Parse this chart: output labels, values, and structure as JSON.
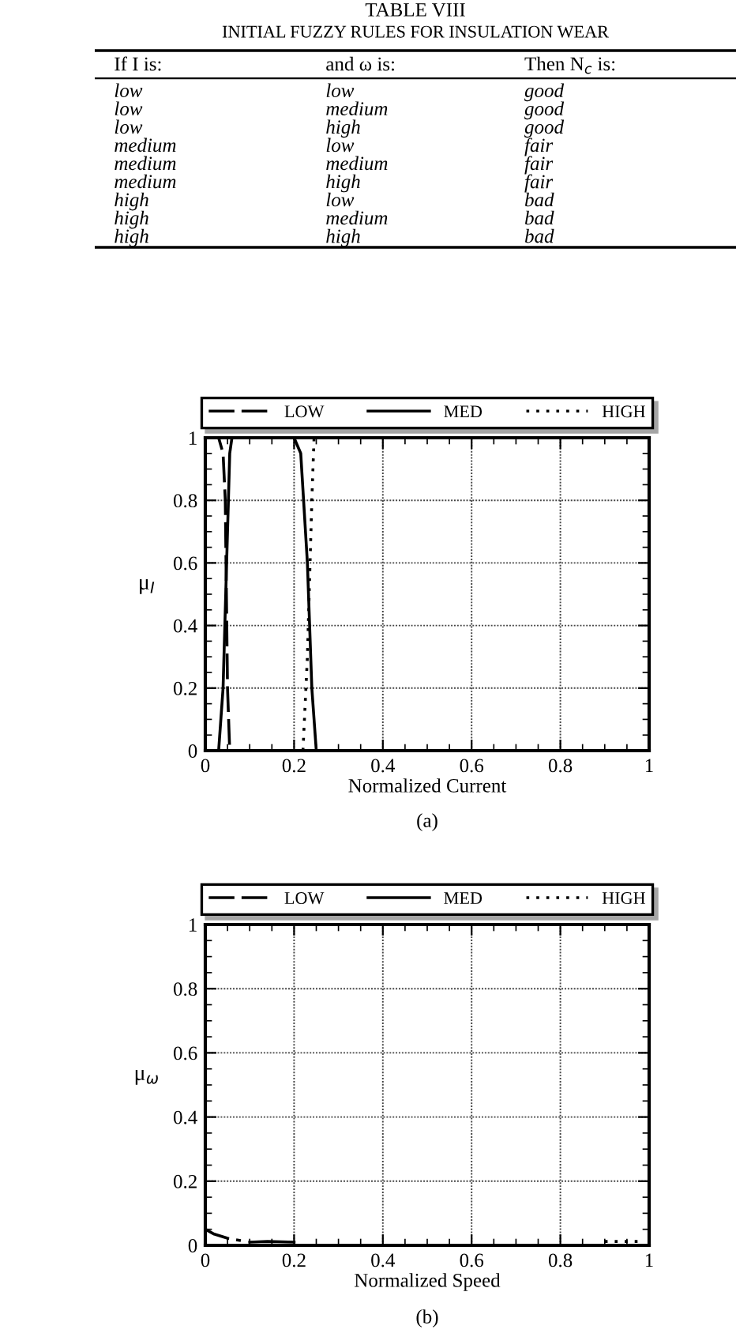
{
  "chart_data": [
    {
      "type": "other",
      "title": "TABLE VIII",
      "subtitle": "INITIAL FUZZY RULES FOR INSULATION WEAR",
      "annotations": [
        "If I is:",
        "and ω is:",
        "Then N$_{c}$ is:",
        "low",
        "low",
        "good",
        "low",
        "medium",
        "good",
        "low",
        "high",
        "good",
        "medium",
        "low",
        "fair",
        "medium",
        "medium",
        "fair",
        "medium",
        "high",
        "fair",
        "high",
        "low",
        "bad",
        "high",
        "medium",
        "bad",
        "high",
        "high",
        "bad"
      ]
    },
    {
      "type": "line",
      "xlabel": "Normalized Current",
      "ylabel": "μ$_{I}$",
      "annotations": [
        "(a)"
      ],
      "xlim": [
        0,
        1
      ],
      "ylim": [
        0,
        1
      ],
      "xticks": [
        0,
        0.2,
        0.4,
        0.6,
        0.8,
        1
      ],
      "yticks": [
        0,
        0.2,
        0.4,
        0.6,
        0.8,
        1
      ],
      "grid": true,
      "legend": "top",
      "series": [
        {
          "name": "LOW",
          "color": "#000000",
          "line_style": "dashed",
          "x": [
            0,
            0.03,
            0.04,
            0.045,
            0.05,
            0.055
          ],
          "values": [
            1,
            1,
            0.95,
            0.8,
            0.2,
            0
          ]
        },
        {
          "name": "MED",
          "color": "#000000",
          "line_style": "solid",
          "x": [
            0.03,
            0.04,
            0.05,
            0.055,
            0.06,
            0.2,
            0.215,
            0.23,
            0.24,
            0.25
          ],
          "values": [
            0,
            0.2,
            0.7,
            0.95,
            1,
            1,
            0.95,
            0.6,
            0.2,
            0
          ]
        },
        {
          "name": "HIGH",
          "color": "#000000",
          "line_style": "dotted",
          "x": [
            0.22,
            0.23,
            0.24,
            0.245,
            1
          ],
          "values": [
            0,
            0.3,
            0.8,
            1,
            1
          ]
        }
      ]
    },
    {
      "type": "line",
      "xlabel": "Normalized Speed",
      "ylabel": "μ$_{ω}$",
      "annotations": [
        "(b)"
      ],
      "xlim": [
        0,
        1
      ],
      "ylim": [
        0,
        1
      ],
      "xticks": [
        0,
        0.2,
        0.4,
        0.6,
        0.8,
        1
      ],
      "yticks": [
        0,
        0.2,
        0.4,
        0.6,
        0.8,
        1
      ],
      "grid": true,
      "legend": "top",
      "series": [
        {
          "name": "LOW",
          "color": "#000000",
          "line_style": "dashed",
          "x": [
            0,
            0.02,
            0.05,
            0.08
          ],
          "values": [
            0.05,
            0.035,
            0.022,
            0.015
          ]
        },
        {
          "name": "MED",
          "color": "#000000",
          "line_style": "solid",
          "x": [
            0.1,
            0.14,
            0.2
          ],
          "values": [
            0.01,
            0.012,
            0.01
          ]
        },
        {
          "name": "HIGH",
          "color": "#000000",
          "line_style": "dotted",
          "x": [
            0.9,
            0.95,
            0.98
          ],
          "values": [
            0.012,
            0.012,
            0.012
          ]
        }
      ]
    }
  ]
}
